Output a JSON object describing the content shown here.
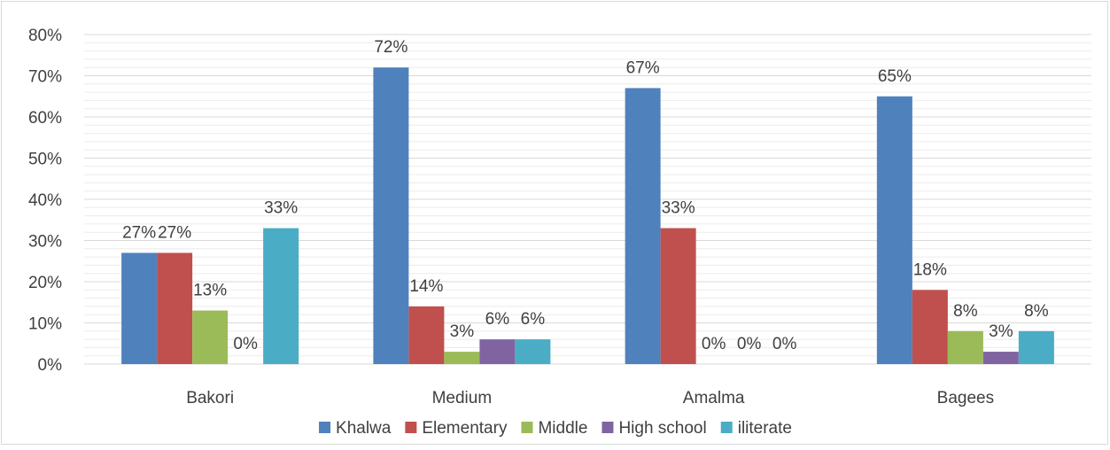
{
  "chart_data": {
    "type": "bar",
    "categories": [
      "Bakori",
      "Medium",
      "Amalma",
      "Bagees"
    ],
    "series": [
      {
        "name": "Khalwa",
        "values": [
          27,
          72,
          67,
          65
        ],
        "labels": [
          "27%",
          "72%",
          "67%",
          "65%"
        ],
        "color": "#4F81BD"
      },
      {
        "name": "Elementary",
        "values": [
          27,
          14,
          33,
          18
        ],
        "labels": [
          "27%",
          "14%",
          "33%",
          "18%"
        ],
        "color": "#C0504D"
      },
      {
        "name": "Middle",
        "values": [
          13,
          3,
          0,
          8
        ],
        "labels": [
          "13%",
          "3%",
          "0%",
          "8%"
        ],
        "color": "#9BBB59"
      },
      {
        "name": "High school",
        "values": [
          0,
          6,
          0,
          3
        ],
        "labels": [
          "0%",
          "6%",
          "0%",
          "3%"
        ],
        "color": "#8064A2"
      },
      {
        "name": "iliterate",
        "values": [
          33,
          6,
          0,
          8
        ],
        "labels": [
          "33%",
          "6%",
          "0%",
          "8%"
        ],
        "color": "#4BACC6"
      }
    ],
    "y_ticks": [
      "0%",
      "10%",
      "20%",
      "30%",
      "40%",
      "50%",
      "60%",
      "70%",
      "80%"
    ],
    "ylim": [
      0,
      80
    ],
    "grid": true,
    "legend_position": "bottom",
    "title": "",
    "xlabel": "",
    "ylabel": ""
  }
}
